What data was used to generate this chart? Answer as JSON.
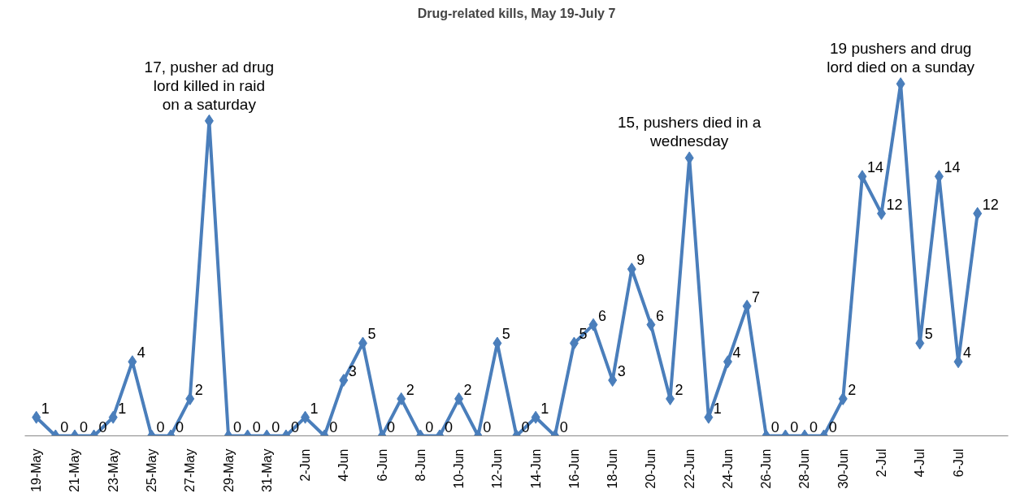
{
  "chart_data": {
    "type": "line",
    "title": "Drug-related kills, May 19-July 7",
    "categories": [
      "19-May",
      null,
      "21-May",
      null,
      "23-May",
      null,
      "25-May",
      null,
      "27-May",
      null,
      "29-May",
      null,
      "31-May",
      null,
      "2-Jun",
      null,
      "4-Jun",
      null,
      "6-Jun",
      null,
      "8-Jun",
      null,
      "10-Jun",
      null,
      "12-Jun",
      null,
      "14-Jun",
      null,
      "16-Jun",
      null,
      "18-Jun",
      null,
      "20-Jun",
      null,
      "22-Jun",
      null,
      "24-Jun",
      null,
      "26-Jun",
      null,
      "28-Jun",
      null,
      "30-Jun",
      null,
      "2-Jul",
      null,
      "4-Jul",
      null,
      "6-Jul",
      null
    ],
    "series": [
      {
        "color": "#4a7ebb",
        "values": [
          1,
          0,
          0,
          0,
          1,
          4,
          0,
          0,
          2,
          17,
          0,
          0,
          0,
          0,
          1,
          0,
          3,
          5,
          0,
          2,
          0,
          0,
          2,
          0,
          5,
          0,
          1,
          0,
          5,
          6,
          3,
          9,
          6,
          2,
          15,
          1,
          4,
          7,
          0,
          0,
          0,
          0,
          2,
          14,
          12,
          19,
          5,
          14,
          4,
          12
        ],
        "value_labels": [
          "1",
          "0",
          "0",
          "0",
          "1",
          "4",
          "0",
          "0",
          "2",
          null,
          "0",
          "0",
          "0",
          "0",
          "1",
          "0",
          "3",
          "5",
          "0",
          "2",
          "0",
          "0",
          "2",
          "0",
          "5",
          "0",
          "1",
          "0",
          "5",
          "6",
          "3",
          "9",
          "6",
          "2",
          null,
          "1",
          "4",
          "7",
          "0",
          "0",
          "0",
          "0",
          "2",
          "14",
          "12",
          null,
          "5",
          "14",
          "4",
          "12"
        ]
      }
    ],
    "annotations": [
      {
        "text": "17, pusher ad drug lord killed in raid on a saturday",
        "y": 17
      },
      {
        "text": "15, pushers died in a wednesday",
        "y": 15
      },
      {
        "text": "19 pushers and drug lord died on a sunday",
        "y": 19
      }
    ],
    "marker": "diamond",
    "line_style": "solid",
    "grid": false
  }
}
